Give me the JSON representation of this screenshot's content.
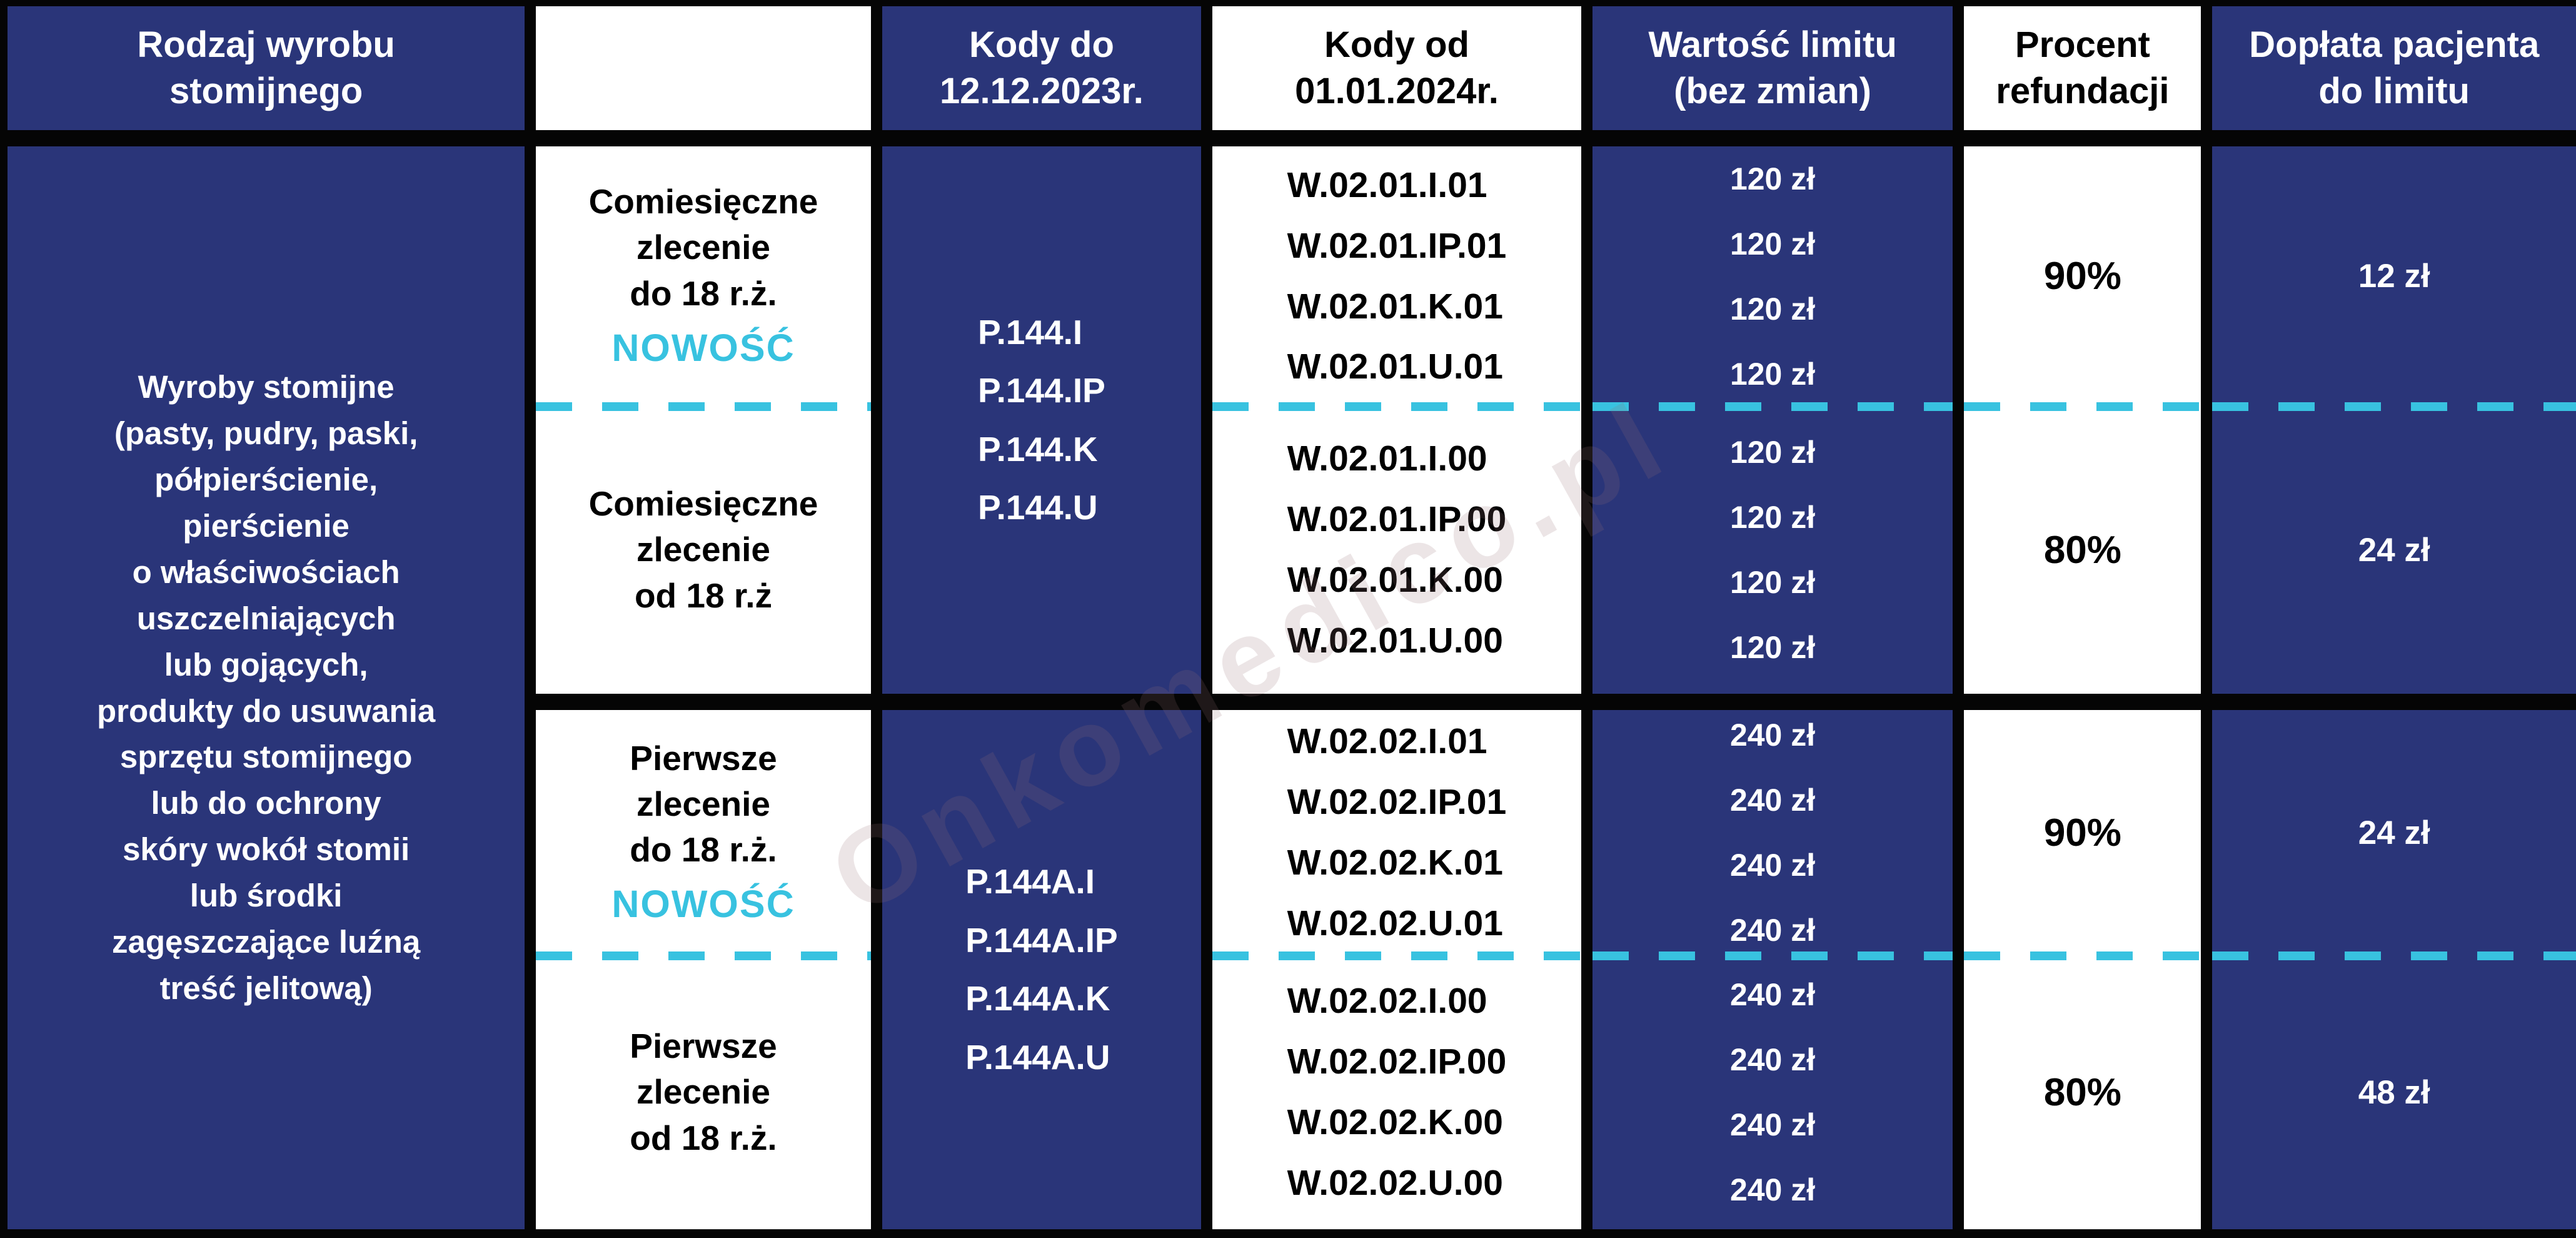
{
  "colors": {
    "navy": "#2a3579",
    "cyan_accent": "#38c2e0",
    "border_black": "#050505",
    "white": "#ffffff"
  },
  "watermark": "Onkomedico.pl",
  "header": {
    "product_type": "Rodzaj wyrobu\nstomijnego",
    "order_type": "",
    "codes_old": "Kody do\n12.12.2023r.",
    "codes_new": "Kody od\n01.01.2024r.",
    "limit": "Wartość limitu\n(bez zmian)",
    "refund": "Procent\nrefundacji",
    "copay": "Dopłata pacjenta\ndo limitu"
  },
  "product": "Wyroby stomijne\n(pasty, pudry, paski,\npółpierścienie,\npierścienie\no właściwościach\nuszczelniających\nlub gojących,\nprodukty do usuwania\nsprzętu stomijnego\nlub do ochrony\nskóry wokół stomii\nlub środki\nzagęszczające luźną\ntreść jelitową)",
  "groups": [
    {
      "codes_old": "P.144.I\nP.144.IP\nP.144.K\nP.144.U",
      "rows": [
        {
          "order": "Comiesięczne\nzlecenie\ndo 18 r.ż.",
          "badge": "NOWOŚĆ",
          "codes_new": "W.02.01.I.01\nW.02.01.IP.01\nW.02.01.K.01\nW.02.01.U.01",
          "limit": "120 zł\n120 zł\n120 zł\n120 zł",
          "refund": "90%",
          "copay": "12 zł"
        },
        {
          "order": "Comiesięczne\nzlecenie\nod 18 r.ż",
          "codes_new": "W.02.01.I.00\nW.02.01.IP.00\nW.02.01.K.00\nW.02.01.U.00",
          "limit": "120 zł\n120 zł\n120 zł\n120 zł",
          "refund": "80%",
          "copay": "24 zł"
        }
      ]
    },
    {
      "codes_old": "P.144A.I\nP.144A.IP\nP.144A.K\nP.144A.U",
      "rows": [
        {
          "order": "Pierwsze\nzlecenie\ndo 18 r.ż.",
          "badge": "NOWOŚĆ",
          "codes_new": "W.02.02.I.01\nW.02.02.IP.01\nW.02.02.K.01\nW.02.02.U.01",
          "limit": "240 zł\n240 zł\n240 zł\n240 zł",
          "refund": "90%",
          "copay": "24 zł"
        },
        {
          "order": "Pierwsze\nzlecenie\nod 18 r.ż.",
          "codes_new": "W.02.02.I.00\nW.02.02.IP.00\nW.02.02.K.00\nW.02.02.U.00",
          "limit": "240 zł\n240 zł\n240 zł\n240 zł",
          "refund": "80%",
          "copay": "48 zł"
        }
      ]
    }
  ],
  "chart_data": {
    "type": "table",
    "title": "Refundacja wyrobów stomijnych — kody i limity od 01.01.2024",
    "columns": [
      "Rodzaj wyrobu stomijnego",
      "",
      "Kody do 12.12.2023r.",
      "Kody od 01.01.2024r.",
      "Wartość limitu (bez zmian)",
      "Procent refundacji",
      "Dopłata pacjenta do limitu"
    ],
    "rows": [
      [
        "Wyroby stomijne (pasty, pudry, paski, półpierścienie, pierścienie o właściwościach uszczelniających lub gojących, produkty do usuwania sprzętu stomijnego lub do ochrony skóry wokół stomii lub środki zagęszczające luźną treść jelitową)",
        "Comiesięczne zlecenie do 18 r.ż. NOWOŚĆ",
        "P.144.I; P.144.IP; P.144.K; P.144.U",
        "W.02.01.I.01; W.02.01.IP.01; W.02.01.K.01; W.02.01.U.01",
        "120 zł; 120 zł; 120 zł; 120 zł",
        "90%",
        "12 zł"
      ],
      [
        "Wyroby stomijne (jw.)",
        "Comiesięczne zlecenie od 18 r.ż",
        "P.144.I; P.144.IP; P.144.K; P.144.U",
        "W.02.01.I.00; W.02.01.IP.00; W.02.01.K.00; W.02.01.U.00",
        "120 zł; 120 zł; 120 zł; 120 zł",
        "80%",
        "24 zł"
      ],
      [
        "Wyroby stomijne (jw.)",
        "Pierwsze zlecenie do 18 r.ż. NOWOŚĆ",
        "P.144A.I; P.144A.IP; P.144A.K; P.144A.U",
        "W.02.02.I.01; W.02.02.IP.01; W.02.02.K.01; W.02.02.U.01",
        "240 zł; 240 zł; 240 zł; 240 zł",
        "90%",
        "24 zł"
      ],
      [
        "Wyroby stomijne (jw.)",
        "Pierwsze zlecenie od 18 r.ż.",
        "P.144A.I; P.144A.IP; P.144A.K; P.144A.U",
        "W.02.02.I.00; W.02.02.IP.00; W.02.02.K.00; W.02.02.U.00",
        "240 zł; 240 zł; 240 zł; 240 zł",
        "80%",
        "48 zł"
      ]
    ]
  }
}
